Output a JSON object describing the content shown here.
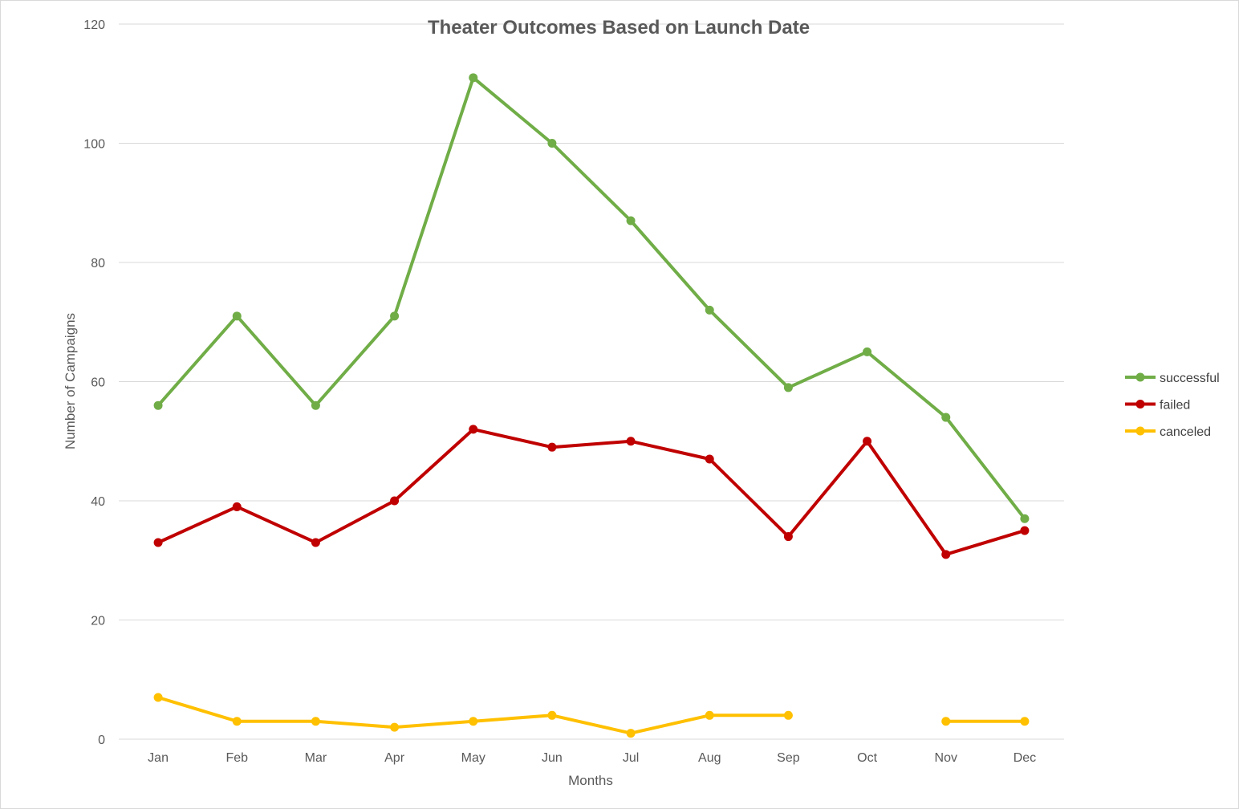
{
  "chart_data": {
    "type": "line",
    "title": "Theater Outcomes Based on Launch Date",
    "xlabel": "Months",
    "ylabel": "Number of Campaigns",
    "categories": [
      "Jan",
      "Feb",
      "Mar",
      "Apr",
      "May",
      "Jun",
      "Jul",
      "Aug",
      "Sep",
      "Oct",
      "Nov",
      "Dec"
    ],
    "ylim": [
      0,
      120
    ],
    "yticks": [
      "0",
      "20",
      "40",
      "60",
      "80",
      "100",
      "120"
    ],
    "grid": true,
    "legend_position": "right",
    "series": [
      {
        "name": "successful",
        "color": "#70ad47",
        "values": [
          56,
          71,
          56,
          71,
          111,
          100,
          87,
          72,
          59,
          65,
          54,
          37
        ]
      },
      {
        "name": "failed",
        "color": "#c00000",
        "values": [
          33,
          39,
          33,
          40,
          52,
          49,
          50,
          47,
          34,
          50,
          31,
          35
        ]
      },
      {
        "name": "canceled",
        "color": "#ffc000",
        "values": [
          7,
          3,
          3,
          2,
          3,
          4,
          1,
          4,
          4,
          null,
          3,
          3
        ]
      }
    ]
  }
}
